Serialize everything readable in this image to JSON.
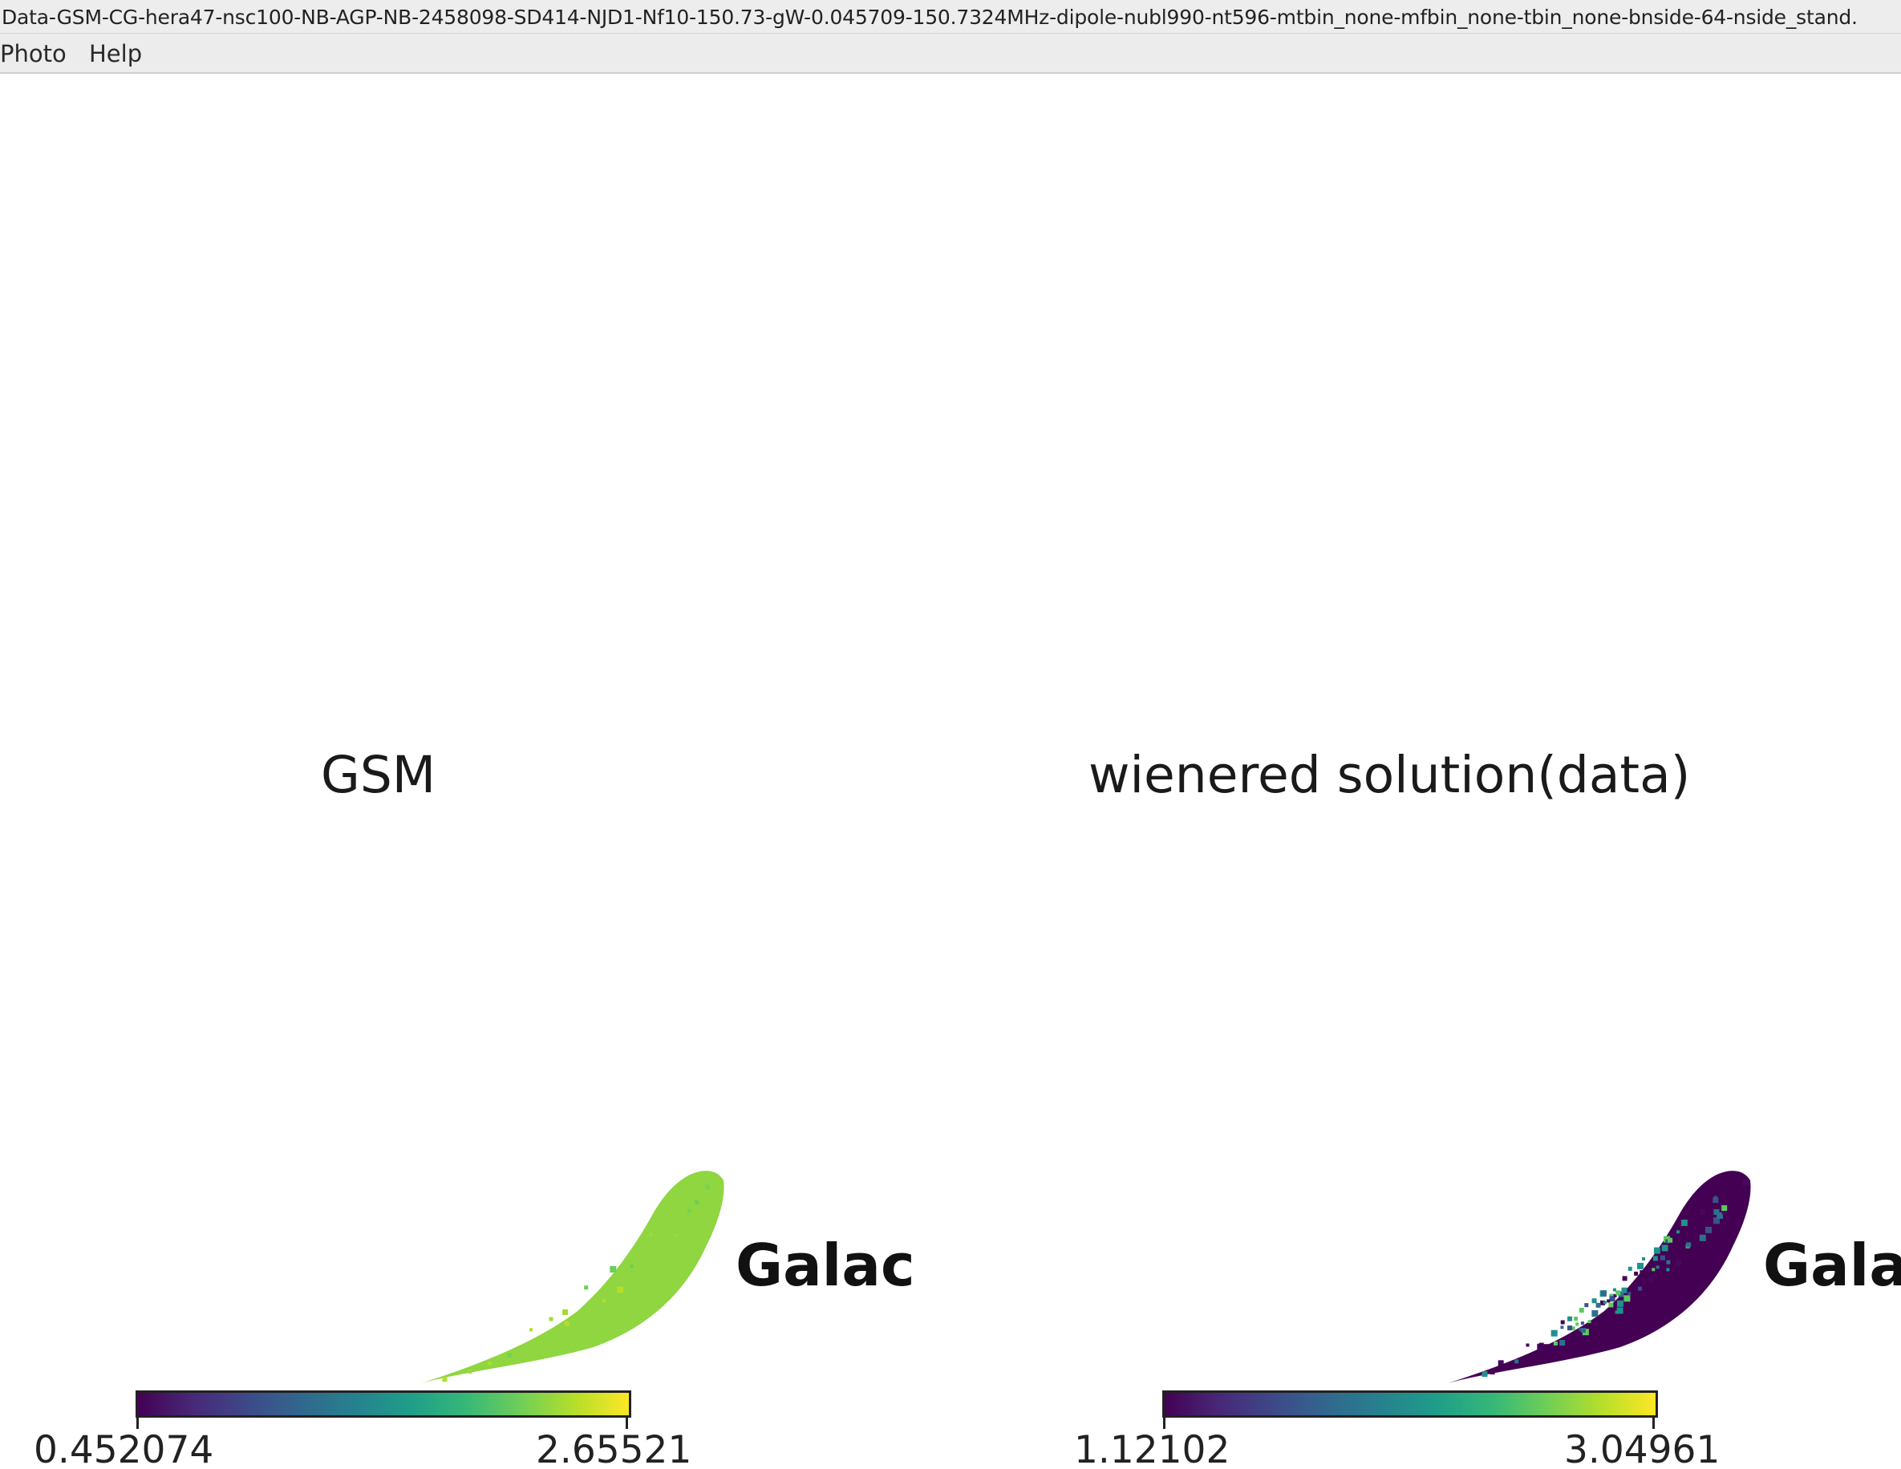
{
  "window": {
    "title": "Data-GSM-CG-hera47-nsc100-NB-AGP-NB-2458098-SD414-NJD1-Nf10-150.73-gW-0.045709-150.7324MHz-dipole-nubl990-nt596-mtbin_none-mfbin_none-tbin_none-bnside-64-nside_stand."
  },
  "menu": {
    "items": [
      "Photo",
      "Help"
    ]
  },
  "panels": [
    {
      "title": "GSM",
      "label": "Galac",
      "colorbar": {
        "min": "0.452074",
        "max": "2.65521",
        "colormap": "viridis"
      },
      "fill_colors": [
        "#8fd641",
        "#9bd93c",
        "#7ad151",
        "#6ccd5a",
        "#b5de2b",
        "#a2da37"
      ]
    },
    {
      "title": "wienered solution(data)",
      "label": "Gala",
      "colorbar": {
        "min": "1.12102",
        "max": "3.04961",
        "colormap": "viridis"
      },
      "fill_colors": [
        "#440154",
        "#46085c",
        "#3b528b",
        "#21918c",
        "#5ec962",
        "#2c728e"
      ]
    }
  ]
}
